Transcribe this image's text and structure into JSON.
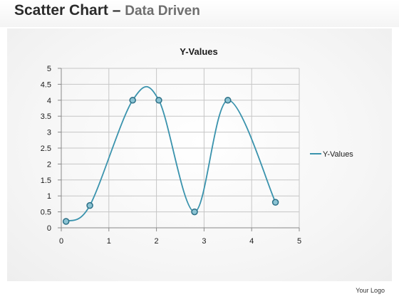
{
  "header": {
    "title_main": "Scatter Chart",
    "title_dash": " – ",
    "title_sub": "Data Driven"
  },
  "footer": {
    "logo_text": "Your Logo"
  },
  "colors": {
    "series": "#3a93ad",
    "marker_fill": "#8bc3d3",
    "marker_stroke": "#2c6f86",
    "grid": "#c6c6c6",
    "axis_text": "#1a1a1a"
  },
  "chart_data": {
    "type": "scatter",
    "style": "smooth-lines-with-markers",
    "title": "Y-Values",
    "xlabel": "",
    "ylabel": "",
    "xlim": [
      0,
      5
    ],
    "ylim": [
      0,
      5
    ],
    "x_ticks": [
      "0",
      "1",
      "2",
      "3",
      "4",
      "5"
    ],
    "y_ticks": [
      "0",
      "0.5",
      "1",
      "1.5",
      "2",
      "2.5",
      "3",
      "3.5",
      "4",
      "4.5",
      "5"
    ],
    "grid": true,
    "legend": "right",
    "series": [
      {
        "name": "Y-Values",
        "x": [
          0.1,
          0.6,
          1.5,
          2.05,
          2.8,
          3.5,
          4.5
        ],
        "y": [
          0.2,
          0.7,
          4.0,
          4.0,
          0.5,
          4.0,
          0.8
        ]
      }
    ]
  }
}
